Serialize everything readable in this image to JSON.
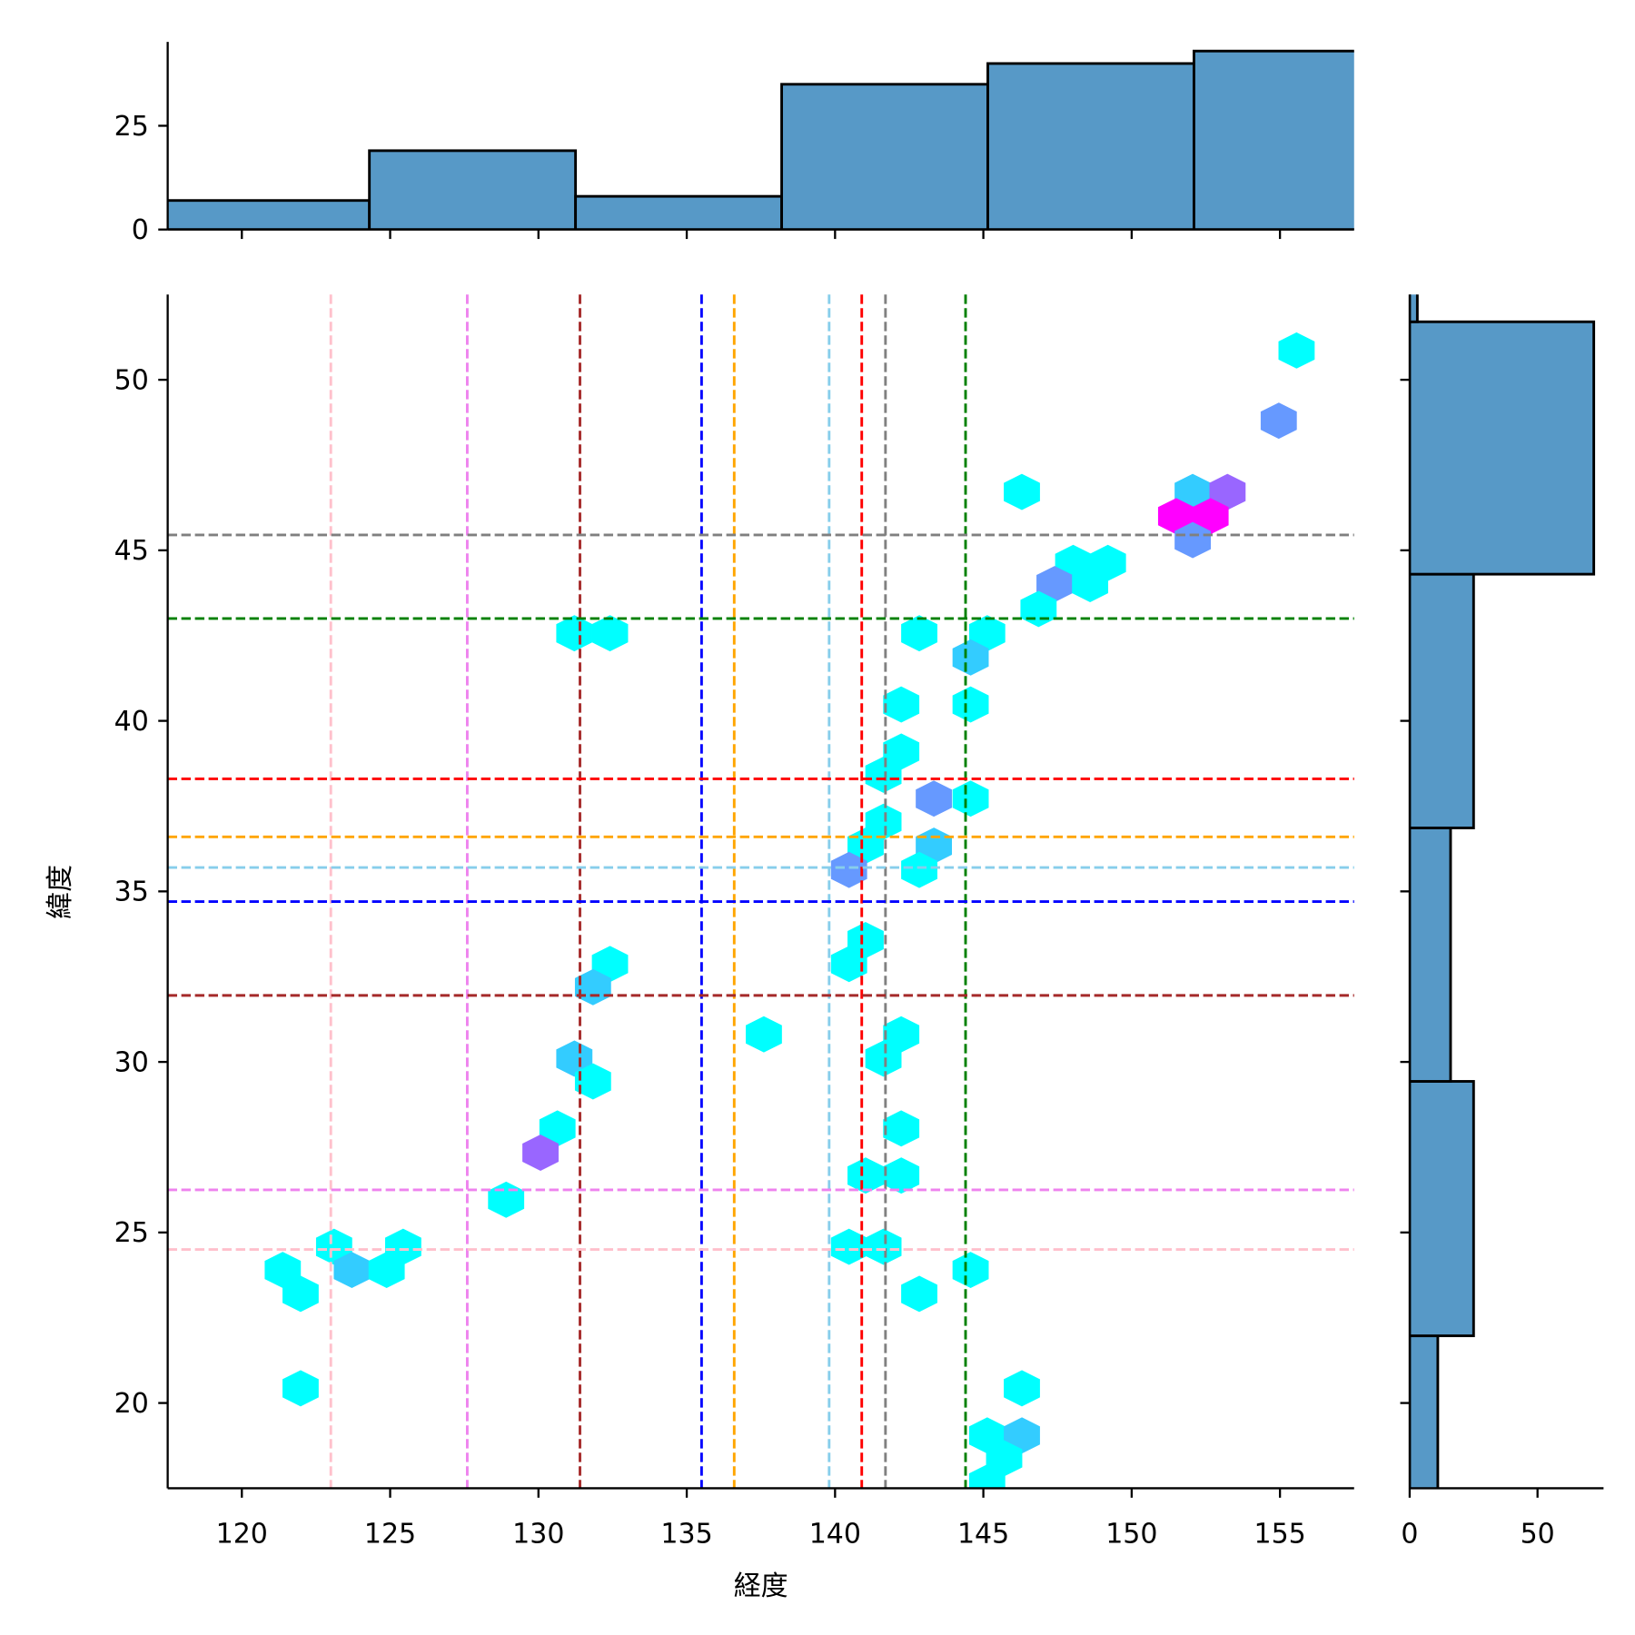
{
  "chart_data": [
    {
      "type": "hexbin",
      "panel": "main",
      "xlabel": "経度",
      "ylabel": "緯度",
      "xlim": [
        117.5,
        157.5
      ],
      "ylim": [
        17.5,
        52.5
      ],
      "xticks": [
        120,
        125,
        130,
        135,
        140,
        145,
        150,
        155
      ],
      "yticks": [
        20,
        25,
        30,
        35,
        40,
        45,
        50
      ],
      "colormap": "cool",
      "count_range": [
        1,
        6
      ],
      "hexbins": [
        {
          "x": 155.56,
          "y": 50.86,
          "count": 1
        },
        {
          "x": 154.96,
          "y": 48.8,
          "count": 3
        },
        {
          "x": 146.3,
          "y": 46.71,
          "count": 1
        },
        {
          "x": 152.06,
          "y": 46.71,
          "count": 2
        },
        {
          "x": 153.23,
          "y": 46.71,
          "count": 4
        },
        {
          "x": 151.5,
          "y": 46.0,
          "count": 6
        },
        {
          "x": 152.66,
          "y": 46.0,
          "count": 6
        },
        {
          "x": 152.06,
          "y": 45.3,
          "count": 3
        },
        {
          "x": 148.03,
          "y": 44.63,
          "count": 1
        },
        {
          "x": 149.2,
          "y": 44.63,
          "count": 1
        },
        {
          "x": 147.4,
          "y": 44.01,
          "count": 3
        },
        {
          "x": 148.6,
          "y": 44.01,
          "count": 1
        },
        {
          "x": 146.86,
          "y": 43.28,
          "count": 1
        },
        {
          "x": 131.21,
          "y": 42.57,
          "count": 1
        },
        {
          "x": 132.41,
          "y": 42.57,
          "count": 1
        },
        {
          "x": 142.84,
          "y": 42.57,
          "count": 1
        },
        {
          "x": 145.13,
          "y": 42.57,
          "count": 1
        },
        {
          "x": 144.57,
          "y": 41.86,
          "count": 2
        },
        {
          "x": 142.23,
          "y": 40.48,
          "count": 1
        },
        {
          "x": 144.57,
          "y": 40.48,
          "count": 1
        },
        {
          "x": 142.23,
          "y": 39.1,
          "count": 1
        },
        {
          "x": 141.63,
          "y": 38.42,
          "count": 1
        },
        {
          "x": 143.33,
          "y": 37.72,
          "count": 3
        },
        {
          "x": 144.57,
          "y": 37.72,
          "count": 1
        },
        {
          "x": 141.63,
          "y": 37.04,
          "count": 1
        },
        {
          "x": 143.33,
          "y": 36.34,
          "count": 2
        },
        {
          "x": 141.03,
          "y": 36.34,
          "count": 1
        },
        {
          "x": 140.47,
          "y": 35.63,
          "count": 3
        },
        {
          "x": 142.84,
          "y": 35.63,
          "count": 1
        },
        {
          "x": 141.03,
          "y": 33.57,
          "count": 1
        },
        {
          "x": 140.47,
          "y": 32.87,
          "count": 1
        },
        {
          "x": 132.41,
          "y": 32.87,
          "count": 1
        },
        {
          "x": 131.84,
          "y": 32.19,
          "count": 2
        },
        {
          "x": 137.6,
          "y": 30.81,
          "count": 1
        },
        {
          "x": 142.23,
          "y": 30.81,
          "count": 1
        },
        {
          "x": 141.63,
          "y": 30.1,
          "count": 1
        },
        {
          "x": 131.21,
          "y": 30.1,
          "count": 2
        },
        {
          "x": 131.84,
          "y": 29.43,
          "count": 1
        },
        {
          "x": 142.23,
          "y": 28.05,
          "count": 1
        },
        {
          "x": 130.64,
          "y": 28.05,
          "count": 1
        },
        {
          "x": 130.07,
          "y": 27.34,
          "count": 4
        },
        {
          "x": 141.03,
          "y": 26.67,
          "count": 1
        },
        {
          "x": 142.23,
          "y": 26.67,
          "count": 1
        },
        {
          "x": 128.91,
          "y": 25.96,
          "count": 1
        },
        {
          "x": 123.11,
          "y": 24.58,
          "count": 1
        },
        {
          "x": 125.44,
          "y": 24.58,
          "count": 1
        },
        {
          "x": 140.47,
          "y": 24.58,
          "count": 1
        },
        {
          "x": 141.63,
          "y": 24.58,
          "count": 1
        },
        {
          "x": 121.38,
          "y": 23.9,
          "count": 1
        },
        {
          "x": 123.71,
          "y": 23.9,
          "count": 2
        },
        {
          "x": 124.88,
          "y": 23.9,
          "count": 1
        },
        {
          "x": 144.57,
          "y": 23.9,
          "count": 1
        },
        {
          "x": 121.98,
          "y": 23.2,
          "count": 1
        },
        {
          "x": 142.84,
          "y": 23.2,
          "count": 1
        },
        {
          "x": 121.98,
          "y": 20.43,
          "count": 1
        },
        {
          "x": 146.3,
          "y": 20.43,
          "count": 1
        },
        {
          "x": 145.13,
          "y": 19.05,
          "count": 1
        },
        {
          "x": 146.3,
          "y": 19.05,
          "count": 2
        },
        {
          "x": 145.7,
          "y": 18.38,
          "count": 1
        },
        {
          "x": 145.13,
          "y": 17.67,
          "count": 1
        }
      ],
      "vlines": [
        {
          "x": 123.0,
          "color": "#ffc0cb"
        },
        {
          "x": 127.6,
          "color": "#ee82ee"
        },
        {
          "x": 131.4,
          "color": "#a52a2a"
        },
        {
          "x": 135.5,
          "color": "#0000ff"
        },
        {
          "x": 136.6,
          "color": "#ffa500"
        },
        {
          "x": 139.8,
          "color": "#87ceeb"
        },
        {
          "x": 140.9,
          "color": "#ff0000"
        },
        {
          "x": 141.7,
          "color": "#808080"
        },
        {
          "x": 144.4,
          "color": "#008000"
        }
      ],
      "hlines": [
        {
          "y": 45.45,
          "color": "#808080"
        },
        {
          "y": 43.0,
          "color": "#008000"
        },
        {
          "y": 38.3,
          "color": "#ff0000"
        },
        {
          "y": 36.6,
          "color": "#ffa500"
        },
        {
          "y": 35.7,
          "color": "#87ceeb"
        },
        {
          "y": 34.7,
          "color": "#0000ff"
        },
        {
          "y": 31.95,
          "color": "#a52a2a"
        },
        {
          "y": 26.25,
          "color": "#ee82ee"
        },
        {
          "y": 24.5,
          "color": "#ffc0cb"
        }
      ]
    },
    {
      "type": "bar",
      "panel": "top-marginal-histogram",
      "variable": "経度",
      "bin_edges": [
        117.35,
        124.3,
        131.25,
        138.2,
        145.15,
        152.1,
        159.05
      ],
      "values": [
        7,
        19,
        8,
        35,
        40,
        43
      ],
      "yticks": [
        0,
        25
      ],
      "ylim": [
        0,
        45
      ],
      "color": "#5799c7"
    },
    {
      "type": "bar",
      "orientation": "horizontal",
      "panel": "right-marginal-histogram",
      "variable": "緯度",
      "bin_edges": [
        14.5,
        21.97,
        29.43,
        36.86,
        44.3,
        51.7,
        59.1
      ],
      "values": [
        11,
        25,
        16,
        25,
        72,
        3
      ],
      "xticks": [
        0,
        50
      ],
      "xlim": [
        0,
        76
      ],
      "color": "#5799c7"
    }
  ]
}
